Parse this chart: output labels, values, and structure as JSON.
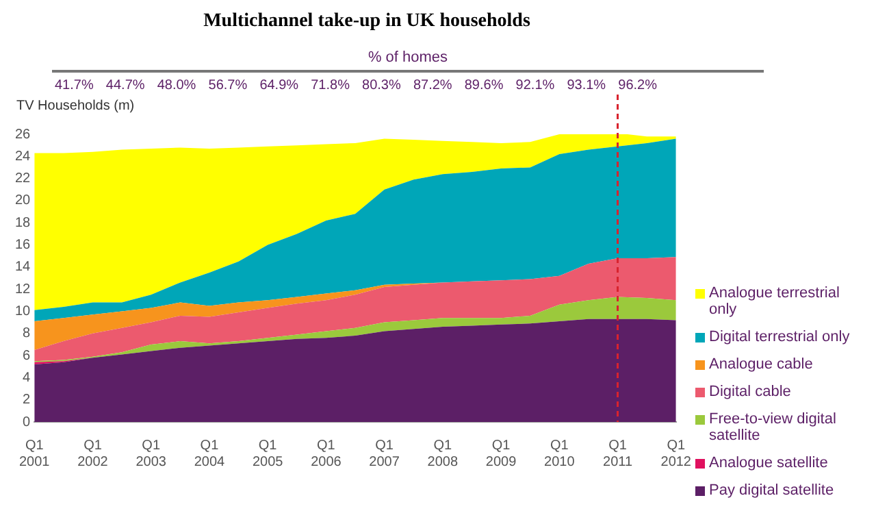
{
  "chart_data": {
    "type": "area",
    "title": "Multichannel take-up in UK households",
    "ylabel": "TV Households (m)",
    "annotations": [
      "% of homes",
      "41.7%",
      "44.7%",
      "48.0%",
      "56.7%",
      "64.9%",
      "71.8%",
      "80.3%",
      "87.2%",
      "89.6%",
      "92.1%",
      "93.1%",
      "96.2%"
    ],
    "categories": [
      "Q1 2001",
      null,
      "Q1 2002",
      null,
      "Q1 2003",
      null,
      "Q1 2004",
      null,
      "Q1 2005",
      null,
      "Q1 2006",
      null,
      "Q1 2007",
      null,
      "Q1 2008",
      null,
      "Q1 2009",
      null,
      "Q1 2010",
      null,
      "Q1 2011",
      null,
      "Q1 2012"
    ],
    "stacked": true,
    "series": [
      {
        "name": "Pay digital satellite",
        "color": "#5c1f66",
        "values": [
          5.2,
          5.4,
          5.8,
          6.1,
          6.4,
          6.7,
          6.9,
          7.1,
          7.3,
          7.5,
          7.6,
          7.8,
          8.2,
          8.4,
          8.6,
          8.7,
          8.8,
          8.9,
          9.1,
          9.3,
          9.3,
          9.3,
          9.2
        ]
      },
      {
        "name": "Analogue satellite",
        "color": "#e0115f",
        "values": [
          0.2,
          0.1,
          0,
          0,
          0,
          0,
          0,
          0,
          0,
          0,
          0,
          0,
          0,
          0,
          0,
          0,
          0,
          0,
          0,
          0,
          0,
          0,
          0
        ]
      },
      {
        "name": "Free-to-view digital satellite",
        "color": "#9bc93c",
        "values": [
          0.1,
          0.1,
          0.1,
          0.2,
          0.6,
          0.6,
          0.2,
          0.2,
          0.3,
          0.4,
          0.6,
          0.7,
          0.8,
          0.8,
          0.8,
          0.7,
          0.6,
          0.7,
          1.5,
          1.7,
          2.0,
          1.9,
          1.8
        ]
      },
      {
        "name": "Digital cable",
        "color": "#ec5a6e",
        "values": [
          1.0,
          1.7,
          2.1,
          2.2,
          2.0,
          2.3,
          2.4,
          2.6,
          2.7,
          2.8,
          2.8,
          3.0,
          3.2,
          3.2,
          3.2,
          3.3,
          3.4,
          3.3,
          2.6,
          3.3,
          3.5,
          3.6,
          3.9
        ]
      },
      {
        "name": "Analogue cable",
        "color": "#f7941d",
        "values": [
          2.6,
          2.1,
          1.7,
          1.5,
          1.3,
          1.2,
          1.0,
          0.9,
          0.7,
          0.6,
          0.6,
          0.4,
          0.2,
          0.1,
          0,
          0,
          0,
          0,
          0,
          0,
          0,
          0,
          0
        ]
      },
      {
        "name": "Digital terrestrial only",
        "color": "#00a6b8",
        "values": [
          1.0,
          1.0,
          1.1,
          0.8,
          1.2,
          1.8,
          3.0,
          3.7,
          5.0,
          5.7,
          6.6,
          6.9,
          8.6,
          9.4,
          9.8,
          9.9,
          10.1,
          10.1,
          11.0,
          10.3,
          10.1,
          10.4,
          10.7
        ]
      },
      {
        "name": "Analogue terrestrial only",
        "color": "#ffff00",
        "values": [
          14.2,
          13.9,
          13.6,
          13.8,
          13.2,
          12.2,
          11.2,
          10.3,
          8.9,
          8.0,
          6.9,
          6.4,
          4.6,
          3.6,
          3.0,
          2.7,
          2.3,
          2.3,
          1.8,
          1.4,
          1.2,
          0.6,
          0.2
        ]
      }
    ],
    "ylim": [
      0,
      26
    ],
    "yticks": [
      0,
      2,
      4,
      6,
      8,
      10,
      12,
      14,
      16,
      18,
      20,
      22,
      24,
      26
    ],
    "ref_lines": [
      {
        "axis": "x",
        "value": "Q1 2011",
        "color": "#d9232e",
        "line_style": "dashed"
      }
    ],
    "legend": "right",
    "grid": false
  }
}
